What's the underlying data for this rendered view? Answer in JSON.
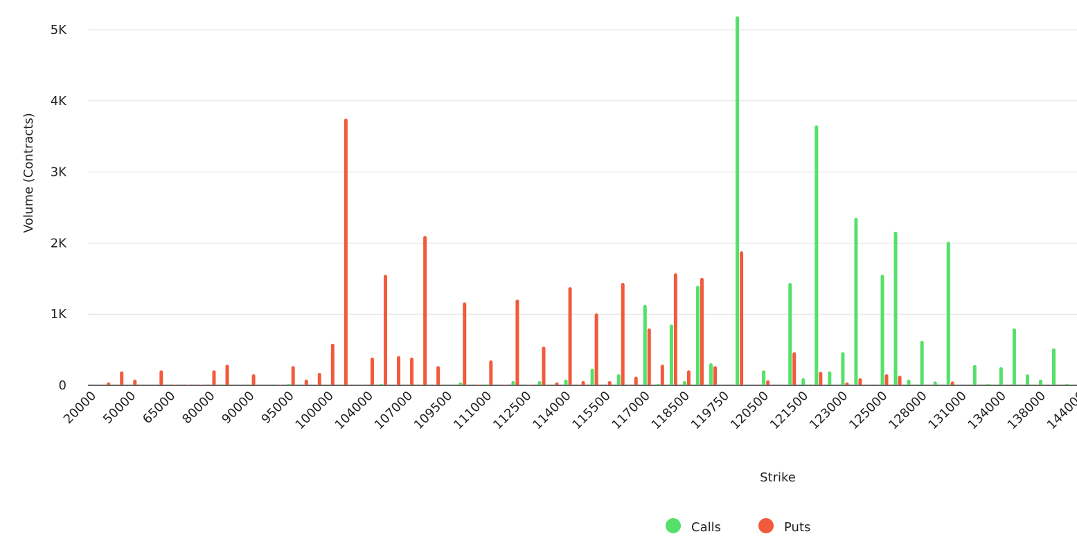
{
  "chart_data": {
    "type": "bar",
    "grouped": true,
    "categories": [
      "20000",
      null,
      null,
      "50000",
      null,
      null,
      "65000",
      null,
      null,
      "80000",
      null,
      null,
      "90000",
      null,
      null,
      "95000",
      null,
      null,
      "100000",
      null,
      null,
      "104000",
      null,
      null,
      "107000",
      null,
      null,
      "109500",
      null,
      null,
      "111000",
      null,
      null,
      "112500",
      null,
      null,
      "114000",
      null,
      null,
      "115500",
      null,
      null,
      "117000",
      null,
      null,
      "118500",
      null,
      null,
      "119750",
      null,
      null,
      "120500",
      null,
      null,
      "121500",
      null,
      null,
      "123000",
      null,
      null,
      "125000",
      null,
      null,
      "128000",
      null,
      null,
      "131000",
      null,
      null,
      "134000",
      null,
      null,
      "138000",
      null,
      null,
      "144000"
    ],
    "series": [
      {
        "name": "Calls",
        "color": "#55e06a",
        "values": [
          0,
          0,
          0,
          0,
          0,
          0,
          0,
          0,
          0,
          0,
          0,
          0,
          0,
          0,
          0,
          20,
          0,
          0,
          0,
          0,
          0,
          0,
          20,
          0,
          0,
          0,
          0,
          0,
          40,
          0,
          15,
          0,
          60,
          0,
          60,
          0,
          80,
          0,
          235,
          0,
          155,
          0,
          1130,
          20,
          855,
          60,
          1400,
          310,
          0,
          5190,
          0,
          210,
          0,
          1440,
          100,
          3655,
          195,
          465,
          2355,
          0,
          1555,
          2160,
          80,
          625,
          55,
          2020,
          0,
          285,
          20,
          255,
          800,
          155,
          80,
          520,
          20,
          0
        ]
      },
      {
        "name": "Puts",
        "color": "#f25a3c",
        "values": [
          0,
          40,
          195,
          80,
          0,
          210,
          10,
          10,
          10,
          210,
          290,
          0,
          155,
          0,
          10,
          270,
          80,
          175,
          585,
          3750,
          0,
          390,
          1555,
          410,
          390,
          2100,
          270,
          0,
          1165,
          10,
          350,
          10,
          1205,
          10,
          545,
          40,
          1380,
          60,
          1010,
          60,
          1440,
          120,
          800,
          290,
          1575,
          210,
          1510,
          270,
          0,
          1885,
          0,
          70,
          0,
          465,
          0,
          190,
          0,
          40,
          100,
          0,
          155,
          135,
          0,
          0,
          0,
          55,
          0,
          0,
          0,
          0,
          0,
          0,
          0,
          0,
          0,
          0
        ]
      }
    ],
    "x_label": "Strike",
    "y_label": "Volume (Contracts)",
    "ylim": [
      0,
      5000
    ],
    "yticks": [
      0,
      {
        "value": 1000,
        "label": "1K"
      },
      {
        "value": 2000,
        "label": "2K"
      },
      {
        "value": 3000,
        "label": "3K"
      },
      {
        "value": 4000,
        "label": "4K"
      },
      {
        "value": 5000,
        "label": "5K"
      }
    ],
    "grid": true,
    "legend": "bottom"
  }
}
